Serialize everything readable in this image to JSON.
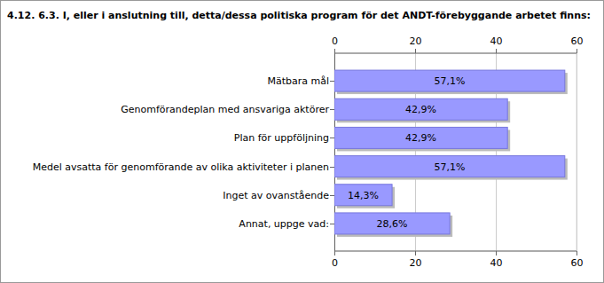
{
  "chart_data": {
    "type": "bar",
    "title": "4.12. 6.3. I, eller i anslutning till, detta/dessa politiska program för det ANDT-förebyggande arbetet finns:",
    "orientation": "horizontal",
    "categories": [
      "Mätbara mål",
      "Genomförandeplan med ansvariga aktörer",
      "Plan för uppföljning",
      "Medel avsatta för genomförande av olika aktiviteter i planen",
      "Inget av ovanstående",
      "Annat, uppge vad:"
    ],
    "values": [
      57.1,
      42.9,
      42.9,
      57.1,
      14.3,
      28.6
    ],
    "value_labels": [
      "57,1%",
      "42,9%",
      "42,9%",
      "57,1%",
      "14,3%",
      "28,6%"
    ],
    "color": "#9999ff",
    "xlim": [
      0,
      60
    ],
    "xticks": [
      0,
      20,
      40,
      60
    ],
    "grid": true,
    "data_labels": true
  }
}
